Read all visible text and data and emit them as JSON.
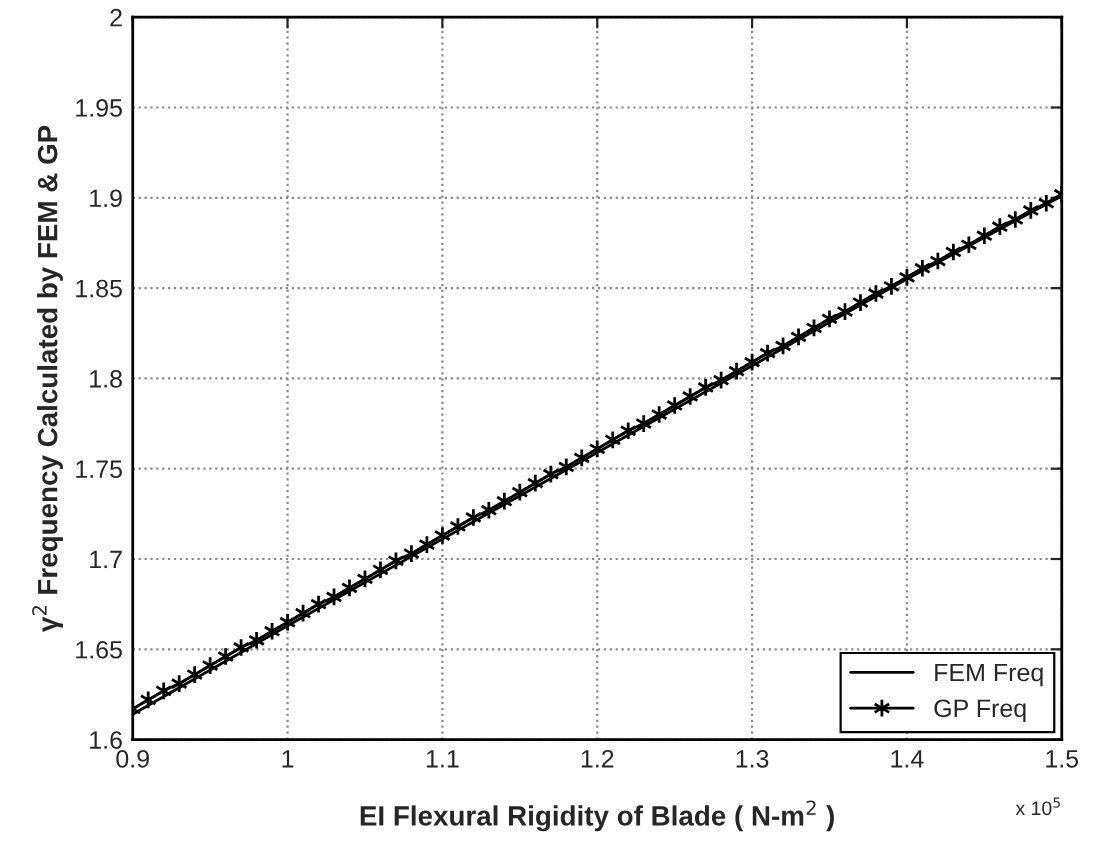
{
  "chart_data": {
    "type": "line",
    "xlabel": "EI Flexural Rigidity of Blade ( N-m$^{2}$ )",
    "ylabel": "γ$^{2}$ Frequency Calculated by FEM & GP",
    "xlim": [
      0.9,
      1.5
    ],
    "ylim": [
      1.6,
      2
    ],
    "xticks": [
      0.9,
      1,
      1.1,
      1.2,
      1.3,
      1.4,
      1.5
    ],
    "yticks": [
      1.6,
      1.65,
      1.7,
      1.75,
      1.8,
      1.85,
      1.9,
      1.95,
      2
    ],
    "grid": true,
    "legend": "bottom right",
    "annotations": [
      "x 10$^{5}$"
    ],
    "series": [
      {
        "name": "FEM Freq",
        "color": "#000000",
        "marker": "none",
        "x": [
          0.9,
          1.0,
          1.1,
          1.2,
          1.3,
          1.4,
          1.5
        ],
        "values": [
          1.614,
          1.663,
          1.711,
          1.759,
          1.807,
          1.855,
          1.901
        ]
      },
      {
        "name": "GP Freq",
        "color": "#000000",
        "marker": "cross",
        "x": [
          0.9,
          0.91,
          0.92,
          0.93,
          0.94,
          0.95,
          0.96,
          0.97,
          0.98,
          0.99,
          1.0,
          1.01,
          1.02,
          1.03,
          1.04,
          1.05,
          1.06,
          1.07,
          1.08,
          1.09,
          1.1,
          1.11,
          1.12,
          1.13,
          1.14,
          1.15,
          1.16,
          1.17,
          1.18,
          1.19,
          1.2,
          1.21,
          1.22,
          1.23,
          1.24,
          1.25,
          1.26,
          1.27,
          1.28,
          1.29,
          1.3,
          1.31,
          1.32,
          1.33,
          1.34,
          1.35,
          1.36,
          1.37,
          1.38,
          1.39,
          1.4,
          1.41,
          1.42,
          1.43,
          1.44,
          1.45,
          1.46,
          1.47,
          1.48,
          1.49,
          1.5
        ],
        "values": [
          1.617,
          1.622,
          1.627,
          1.631,
          1.636,
          1.641,
          1.646,
          1.651,
          1.655,
          1.66,
          1.665,
          1.67,
          1.675,
          1.679,
          1.684,
          1.689,
          1.694,
          1.699,
          1.703,
          1.708,
          1.713,
          1.718,
          1.723,
          1.727,
          1.732,
          1.737,
          1.742,
          1.747,
          1.751,
          1.756,
          1.761,
          1.766,
          1.771,
          1.775,
          1.78,
          1.785,
          1.79,
          1.795,
          1.799,
          1.804,
          1.809,
          1.814,
          1.818,
          1.823,
          1.828,
          1.833,
          1.837,
          1.842,
          1.847,
          1.851,
          1.856,
          1.861,
          1.865,
          1.87,
          1.874,
          1.879,
          1.884,
          1.888,
          1.893,
          1.897,
          1.902
        ]
      }
    ]
  }
}
